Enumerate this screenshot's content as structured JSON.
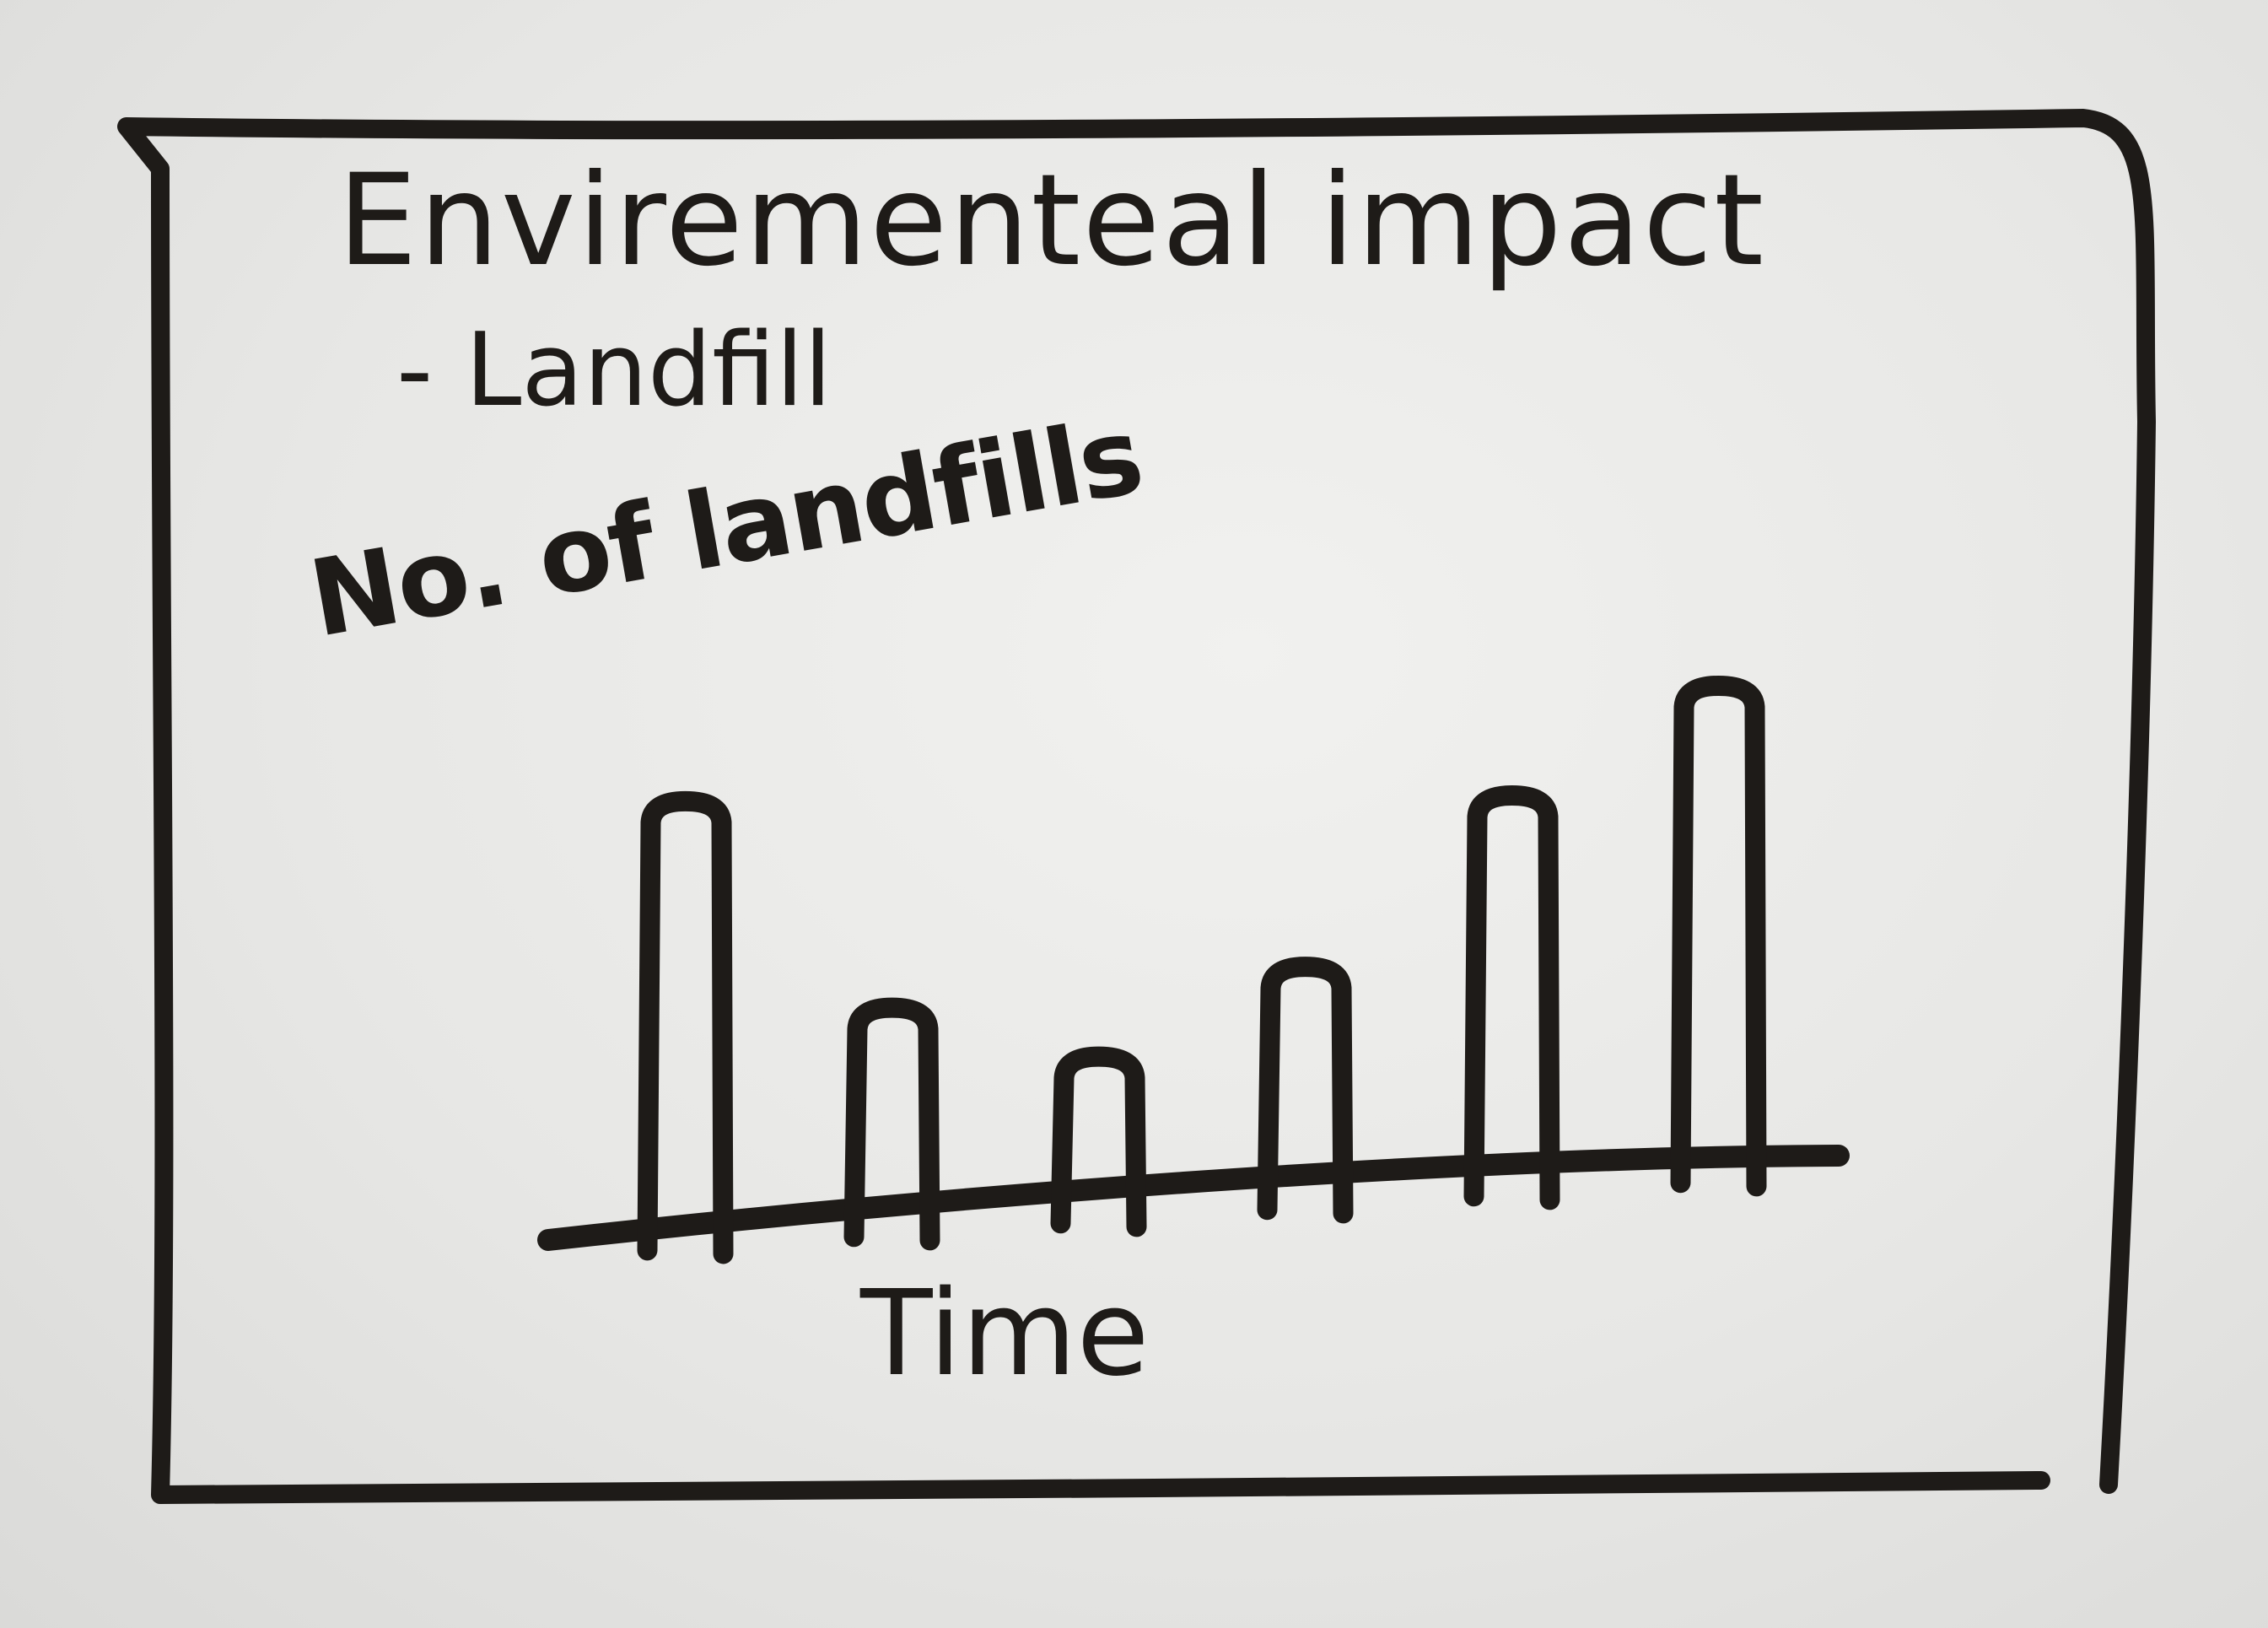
{
  "title": "Envirementeal impact",
  "subtitle": "- Landfill",
  "chart_data": {
    "type": "bar",
    "title": "Envirementeal impact",
    "subtitle": "- Landfill",
    "ylabel": "No. of landfills",
    "xlabel": "Time",
    "categories": [
      "",
      "",
      "",
      "",
      "",
      ""
    ],
    "values": [
      5.0,
      2.5,
      1.8,
      2.8,
      4.9,
      6.3
    ],
    "ylim": [
      0,
      7
    ],
    "grid": false,
    "colors": {
      "ink": "#1e1b18",
      "board": "#ececea"
    }
  }
}
